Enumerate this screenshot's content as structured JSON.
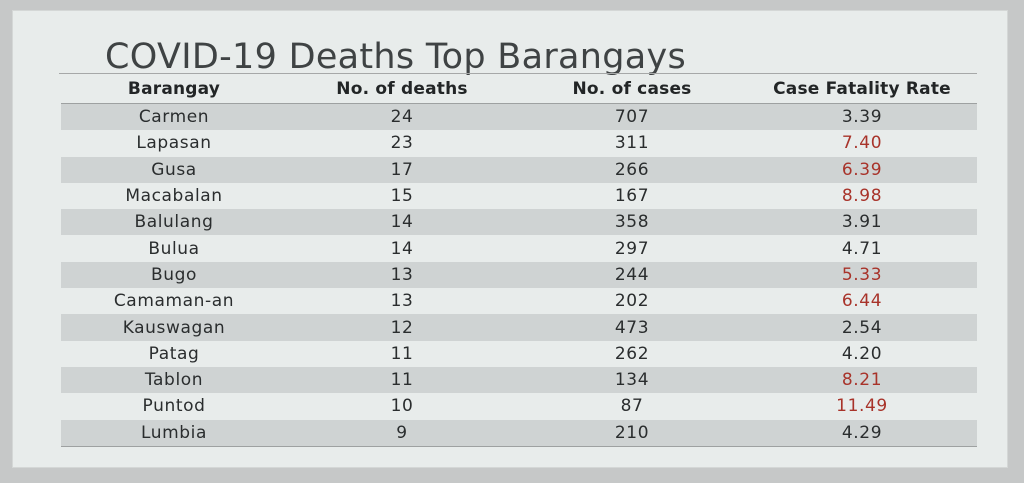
{
  "title": "COVID-19 Deaths Top Barangays",
  "columns": [
    "Barangay",
    "No. of deaths",
    "No. of cases",
    "Case Fatality Rate"
  ],
  "highlight_color": "#a8332a",
  "rows": [
    {
      "barangay": "Carmen",
      "deaths": "24",
      "cases": "707",
      "cfr": "3.39",
      "highlight": false
    },
    {
      "barangay": "Lapasan",
      "deaths": "23",
      "cases": "311",
      "cfr": "7.40",
      "highlight": true
    },
    {
      "barangay": "Gusa",
      "deaths": "17",
      "cases": "266",
      "cfr": "6.39",
      "highlight": true
    },
    {
      "barangay": "Macabalan",
      "deaths": "15",
      "cases": "167",
      "cfr": "8.98",
      "highlight": true
    },
    {
      "barangay": "Balulang",
      "deaths": "14",
      "cases": "358",
      "cfr": "3.91",
      "highlight": false
    },
    {
      "barangay": "Bulua",
      "deaths": "14",
      "cases": "297",
      "cfr": "4.71",
      "highlight": false
    },
    {
      "barangay": "Bugo",
      "deaths": "13",
      "cases": "244",
      "cfr": "5.33",
      "highlight": true
    },
    {
      "barangay": "Camaman-an",
      "deaths": "13",
      "cases": "202",
      "cfr": "6.44",
      "highlight": true
    },
    {
      "barangay": "Kauswagan",
      "deaths": "12",
      "cases": "473",
      "cfr": "2.54",
      "highlight": false
    },
    {
      "barangay": "Patag",
      "deaths": "11",
      "cases": "262",
      "cfr": "4.20",
      "highlight": false
    },
    {
      "barangay": "Tablon",
      "deaths": "11",
      "cases": "134",
      "cfr": "8.21",
      "highlight": true
    },
    {
      "barangay": "Puntod",
      "deaths": "10",
      "cases": "87",
      "cfr": "11.49",
      "highlight": true
    },
    {
      "barangay": "Lumbia",
      "deaths": "9",
      "cases": "210",
      "cfr": "4.29",
      "highlight": false
    }
  ]
}
